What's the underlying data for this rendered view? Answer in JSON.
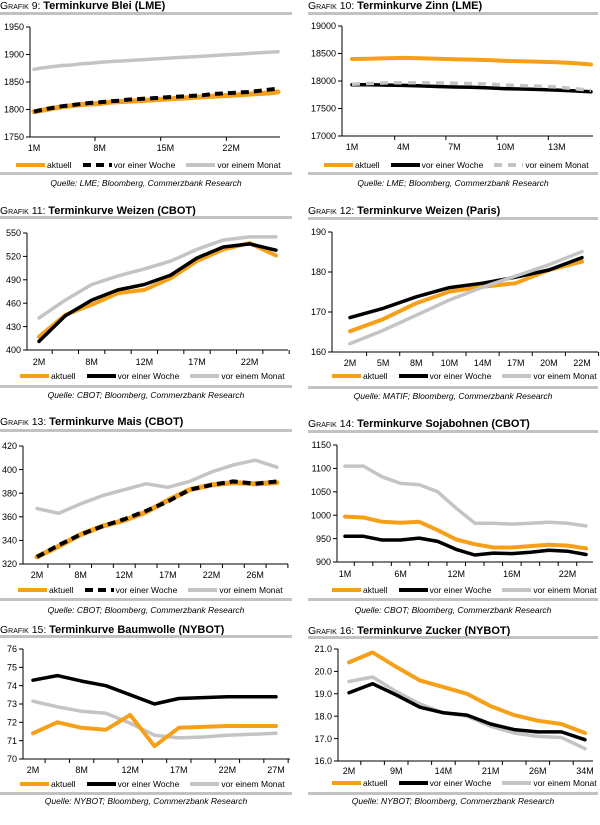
{
  "chart_data": [
    {
      "type": "line",
      "label": "Grafik 9:",
      "title": "Terminkurve Blei (LME)",
      "xlabel": "",
      "ylabel": "",
      "categories": [
        "1M",
        "",
        "",
        "",
        "",
        "",
        "",
        "8M",
        "",
        "",
        "",
        "",
        "",
        "",
        "15M",
        "",
        "",
        "",
        "",
        "",
        "",
        "22M",
        "",
        "",
        "",
        "",
        ""
      ],
      "ylim": [
        1750,
        1950
      ],
      "yticks": [
        1750,
        1800,
        1850,
        1900,
        1950
      ],
      "ytick_labels": [
        "1750",
        "1800",
        "1850",
        "1900",
        "1950"
      ],
      "grid": false,
      "legend": "bottom",
      "series": [
        {
          "name": "aktuell",
          "color": "#f6a01a",
          "values": [
            1796,
            1799,
            1802,
            1805,
            1807,
            1809,
            1810,
            1811,
            1813,
            1814,
            1815,
            1816,
            1817,
            1818,
            1819,
            1820,
            1821,
            1822,
            1823,
            1824,
            1825,
            1826,
            1827,
            1828,
            1829,
            1830,
            1832
          ]
        },
        {
          "name": "vor einer Woche",
          "color": "#000000",
          "values": [
            1796,
            1800,
            1803,
            1806,
            1808,
            1810,
            1812,
            1813,
            1815,
            1816,
            1818,
            1819,
            1820,
            1821,
            1822,
            1823,
            1824,
            1825,
            1826,
            1828,
            1829,
            1830,
            1831,
            1832,
            1834,
            1836,
            1838
          ]
        },
        {
          "name": "vor einem Monat",
          "color": "#c4c4c4",
          "values": [
            1873,
            1876,
            1878,
            1880,
            1881,
            1883,
            1884,
            1886,
            1887,
            1888,
            1889,
            1890,
            1891,
            1892,
            1893,
            1894,
            1895,
            1896,
            1897,
            1898,
            1899,
            1900,
            1901,
            1902,
            1903,
            1904,
            1905
          ]
        }
      ],
      "source": "Quelle: LME; Bloomberg, Commerzbank Research"
    },
    {
      "type": "line",
      "label": "Grafik 10:",
      "title": "Terminkurve Zinn (LME)",
      "xlabel": "",
      "ylabel": "",
      "categories": [
        "1M",
        "",
        "",
        "4M",
        "",
        "",
        "7M",
        "",
        "",
        "10M",
        "",
        "",
        "13M",
        "",
        ""
      ],
      "ylim": [
        17000,
        19000
      ],
      "yticks": [
        17000,
        17500,
        18000,
        18500,
        19000
      ],
      "ytick_labels": [
        "17000",
        "17500",
        "18000",
        "18500",
        "19000"
      ],
      "grid": false,
      "legend": "bottom",
      "series": [
        {
          "name": "aktuell",
          "color": "#f6a01a",
          "values": [
            18400,
            18405,
            18415,
            18420,
            18415,
            18405,
            18395,
            18390,
            18380,
            18365,
            18360,
            18350,
            18340,
            18325,
            18300
          ]
        },
        {
          "name": "vor einer Woche",
          "color": "#000000",
          "values": [
            17930,
            17930,
            17925,
            17920,
            17910,
            17900,
            17890,
            17885,
            17875,
            17860,
            17855,
            17845,
            17835,
            17820,
            17805
          ]
        },
        {
          "name": "vor einem Monat",
          "color": "#c4c4c4",
          "values": [
            17940,
            17955,
            17965,
            17970,
            17970,
            17965,
            17960,
            17955,
            17945,
            17925,
            17915,
            17905,
            17890,
            17860,
            17830
          ]
        }
      ],
      "source": "Quelle: LME; Bloomberg, Commerzbank Research"
    },
    {
      "type": "line",
      "label": "Grafik 11:",
      "title": "Terminkurve Weizen (CBOT)",
      "xlabel": "",
      "ylabel": "",
      "categories": [
        "2M",
        "",
        "8M",
        "",
        "12M",
        "",
        "17M",
        "",
        "22M",
        ""
      ],
      "ylim": [
        400,
        550
      ],
      "yticks": [
        400,
        430,
        460,
        490,
        520,
        550
      ],
      "ytick_labels": [
        "400",
        "430",
        "460",
        "490",
        "520",
        "550"
      ],
      "grid": false,
      "legend": "bottom",
      "series": [
        {
          "name": "aktuell",
          "color": "#f6a01a",
          "values": [
            417,
            445,
            458,
            473,
            477,
            492,
            514,
            529,
            537,
            521
          ]
        },
        {
          "name": "vor einer Woche",
          "color": "#000000",
          "values": [
            411,
            444,
            464,
            477,
            484,
            496,
            518,
            532,
            536,
            528
          ]
        },
        {
          "name": "vor einem Monat",
          "color": "#c4c4c4",
          "values": [
            441,
            464,
            484,
            495,
            504,
            514,
            529,
            541,
            545,
            545
          ]
        }
      ],
      "source": "Quelle: CBOT; Bloomberg, Commerzbank Research"
    },
    {
      "type": "line",
      "label": "Grafik 12:",
      "title": "Terminkurve Weizen (Paris)",
      "xlabel": "",
      "ylabel": "",
      "categories": [
        "2M",
        "5M",
        "8M",
        "10M",
        "14M",
        "17M",
        "20M",
        "22M"
      ],
      "ylim": [
        160,
        190
      ],
      "yticks": [
        160,
        170,
        180,
        190
      ],
      "ytick_labels": [
        "160",
        "170",
        "180",
        "190"
      ],
      "grid": false,
      "legend": "bottom",
      "series": [
        {
          "name": "aktuell",
          "color": "#f6a01a",
          "values": [
            165.2,
            168.2,
            172.2,
            175.1,
            176.3,
            177.2,
            180.5,
            182.6
          ]
        },
        {
          "name": "vor einer Woche",
          "color": "#000000",
          "values": [
            168.6,
            170.9,
            173.8,
            176.1,
            177.2,
            178.7,
            180.5,
            183.6
          ]
        },
        {
          "name": "vor einem Monat",
          "color": "#c4c4c4",
          "values": [
            162.1,
            165.4,
            169.2,
            173.0,
            176.2,
            179.0,
            181.8,
            185.1
          ]
        }
      ],
      "source": "Quelle: MATIF; Bloomberg, Commerzbank Research"
    },
    {
      "type": "line",
      "label": "Grafik 13:",
      "title": "Terminkurve Mais (CBOT)",
      "xlabel": "",
      "ylabel": "",
      "categories": [
        "2M",
        "",
        "8M",
        "",
        "12M",
        "",
        "17M",
        "",
        "22M",
        "",
        "26M",
        ""
      ],
      "ylim": [
        320,
        420
      ],
      "yticks": [
        320,
        340,
        360,
        380,
        400,
        420
      ],
      "ytick_labels": [
        "320",
        "340",
        "360",
        "380",
        "400",
        "420"
      ],
      "grid": false,
      "legend": "bottom",
      "series": [
        {
          "name": "aktuell",
          "color": "#f6a01a",
          "values": [
            326,
            335,
            345,
            352,
            357,
            364,
            374,
            383,
            387,
            389,
            388,
            389
          ]
        },
        {
          "name": "vor einer Woche",
          "color": "#000000",
          "values": [
            326,
            336,
            345,
            352,
            358,
            365,
            373,
            383,
            387,
            390,
            388,
            390
          ]
        },
        {
          "name": "vor einem Monat",
          "color": "#c4c4c4",
          "values": [
            367,
            363,
            371,
            378,
            383,
            388,
            385,
            390,
            398,
            404,
            408,
            402
          ]
        }
      ],
      "source": "Quelle: CBOT; Bloomberg, Commerzbank Research"
    },
    {
      "type": "line",
      "label": "Grafik 14:",
      "title": "Terminkurve Sojabohnen (CBOT)",
      "xlabel": "",
      "ylabel": "",
      "categories": [
        "1M",
        "",
        "",
        "6M",
        "",
        "",
        "12M",
        "",
        "",
        "16M",
        "",
        "",
        "22M",
        ""
      ],
      "ylim": [
        900,
        1150
      ],
      "yticks": [
        900,
        950,
        1000,
        1050,
        1100,
        1150
      ],
      "ytick_labels": [
        "900",
        "950",
        "1000",
        "1050",
        "1100",
        "1150"
      ],
      "grid": false,
      "legend": "bottom",
      "series": [
        {
          "name": "aktuell",
          "color": "#f6a01a",
          "values": [
            997,
            995,
            986,
            984,
            986,
            968,
            948,
            938,
            931,
            931,
            934,
            937,
            935,
            929
          ]
        },
        {
          "name": "vor einer Woche",
          "color": "#000000",
          "values": [
            955,
            955,
            947,
            947,
            951,
            944,
            927,
            915,
            919,
            918,
            921,
            925,
            923,
            916
          ]
        },
        {
          "name": "vor einem Monat",
          "color": "#c4c4c4",
          "values": [
            1105,
            1105,
            1082,
            1068,
            1065,
            1050,
            1015,
            983,
            983,
            981,
            983,
            985,
            983,
            977
          ]
        }
      ],
      "source": "Quelle: CBOT; Bloomberg, Commerzbank Research"
    },
    {
      "type": "line",
      "label": "Grafik 15:",
      "title": "Terminkurve Baumwolle (NYBOT)",
      "xlabel": "",
      "ylabel": "",
      "categories": [
        "2M",
        "",
        "8M",
        "",
        "12M",
        "",
        "17M",
        "",
        "22M",
        "",
        "27M"
      ],
      "ylim": [
        70,
        76
      ],
      "yticks": [
        70,
        71,
        72,
        73,
        74,
        75,
        76
      ],
      "ytick_labels": [
        "70",
        "71",
        "72",
        "73",
        "74",
        "75",
        "76"
      ],
      "grid": false,
      "legend": "bottom",
      "series": [
        {
          "name": "aktuell",
          "color": "#f6a01a",
          "values": [
            71.4,
            72.0,
            71.7,
            71.6,
            72.4,
            70.7,
            71.7,
            71.75,
            71.8,
            71.8,
            71.8
          ]
        },
        {
          "name": "vor einer Woche",
          "color": "#000000",
          "values": [
            74.3,
            74.55,
            74.25,
            74.0,
            73.5,
            73.0,
            73.3,
            73.35,
            73.4,
            73.4,
            73.4
          ]
        },
        {
          "name": "vor einem Monat",
          "color": "#c4c4c4",
          "values": [
            73.15,
            72.85,
            72.6,
            72.5,
            71.95,
            71.3,
            71.15,
            71.2,
            71.3,
            71.35,
            71.4
          ]
        }
      ],
      "source": "Quelle: NYBOT; Bloomberg, Commerzbank Research"
    },
    {
      "type": "line",
      "label": "Grafik 16:",
      "title": "Terminkurve Zucker (NYBOT)",
      "xlabel": "",
      "ylabel": "",
      "categories": [
        "2M",
        "",
        "9M",
        "",
        "14M",
        "",
        "21M",
        "",
        "26M",
        "",
        "34M"
      ],
      "ylim": [
        16.0,
        21.0
      ],
      "yticks": [
        16,
        17,
        18,
        19,
        20,
        21
      ],
      "ytick_labels": [
        "16.0",
        "17.0",
        "18.0",
        "19.0",
        "20.0",
        "21.0"
      ],
      "grid": false,
      "legend": "bottom",
      "series": [
        {
          "name": "aktuell",
          "color": "#f6a01a",
          "values": [
            20.4,
            20.85,
            20.2,
            19.6,
            19.3,
            19.0,
            18.45,
            18.05,
            17.8,
            17.65,
            17.25
          ]
        },
        {
          "name": "vor einer Woche",
          "color": "#000000",
          "values": [
            19.05,
            19.45,
            18.95,
            18.4,
            18.15,
            18.05,
            17.65,
            17.4,
            17.3,
            17.3,
            16.95
          ]
        },
        {
          "name": "vor einem Monat",
          "color": "#c4c4c4",
          "values": [
            19.55,
            19.75,
            19.1,
            18.55,
            18.15,
            18.0,
            17.55,
            17.25,
            17.1,
            17.05,
            16.55
          ]
        }
      ],
      "source": "Quelle: NYBOT; Bloomberg, Commerzbank Research"
    }
  ]
}
